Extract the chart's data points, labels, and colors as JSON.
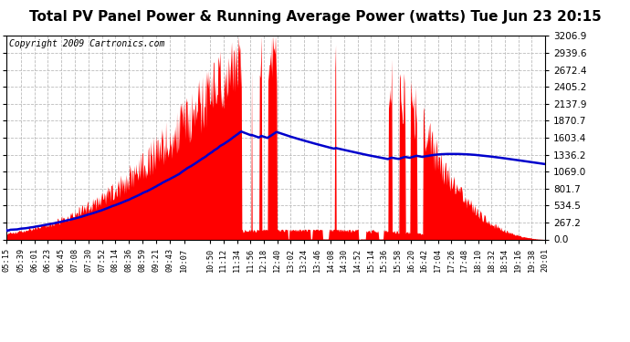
{
  "title": "Total PV Panel Power & Running Average Power (watts) Tue Jun 23 20:15",
  "copyright": "Copyright 2009 Cartronics.com",
  "ytick_values": [
    0.0,
    267.2,
    534.5,
    801.7,
    1069.0,
    1336.2,
    1603.4,
    1870.7,
    2137.9,
    2405.2,
    2672.4,
    2939.6,
    3206.9
  ],
  "ymax": 3206.9,
  "background_color": "#ffffff",
  "plot_bg_color": "#ffffff",
  "fill_color": "#ff0000",
  "avg_line_color": "#0000cc",
  "grid_color": "#bbbbbb",
  "title_color": "#000000",
  "title_fontsize": 11,
  "copyright_fontsize": 7
}
